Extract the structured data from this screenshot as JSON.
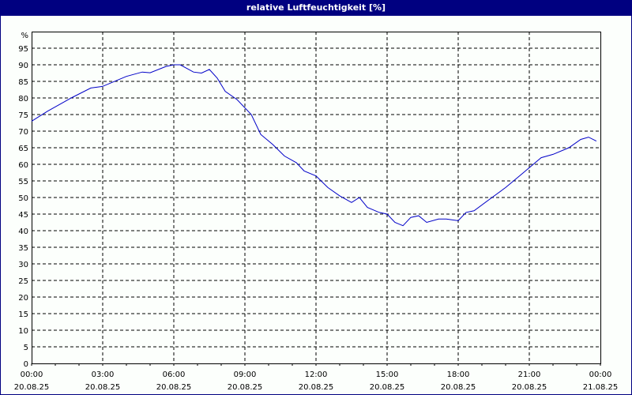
{
  "window": {
    "title": "relative Luftfeuchtigkeit [%]"
  },
  "colors": {
    "titlebar": "#000080",
    "line": "#0000c8",
    "grid": "#000000",
    "background": "#fcfffc"
  },
  "chart_data": {
    "type": "line",
    "title": "relative Luftfeuchtigkeit [%]",
    "xlabel": "",
    "ylabel": "%",
    "ylim": [
      0,
      100
    ],
    "grid": true,
    "legend": null,
    "y_ticks": [
      "0",
      "5",
      "10",
      "15",
      "20",
      "25",
      "30",
      "35",
      "40",
      "45",
      "50",
      "55",
      "60",
      "65",
      "70",
      "75",
      "80",
      "85",
      "90",
      "95"
    ],
    "y_unit_label": "%",
    "x_ticks": [
      {
        "time": "00:00",
        "date": "20.08.25"
      },
      {
        "time": "03:00",
        "date": "20.08.25"
      },
      {
        "time": "06:00",
        "date": "20.08.25"
      },
      {
        "time": "09:00",
        "date": "20.08.25"
      },
      {
        "time": "12:00",
        "date": "20.08.25"
      },
      {
        "time": "15:00",
        "date": "20.08.25"
      },
      {
        "time": "18:00",
        "date": "20.08.25"
      },
      {
        "time": "21:00",
        "date": "20.08.25"
      },
      {
        "time": "00:00",
        "date": "21.08.25"
      }
    ],
    "series": [
      {
        "name": "relative Luftfeuchtigkeit",
        "x_hours": [
          0,
          0.67,
          1.67,
          2.5,
          3.0,
          4.0,
          4.67,
          5.0,
          5.67,
          6.0,
          6.27,
          6.83,
          7.17,
          7.5,
          7.83,
          8.17,
          8.67,
          9.27,
          9.67,
          10.17,
          10.67,
          11.17,
          11.5,
          12.0,
          12.5,
          13.0,
          13.5,
          13.83,
          14.17,
          14.67,
          15.0,
          15.33,
          15.67,
          16.0,
          16.33,
          16.67,
          17.17,
          17.5,
          18.0,
          18.33,
          18.67,
          19.33,
          20.0,
          20.67,
          21.0,
          21.5,
          22.0,
          22.67,
          23.17,
          23.5,
          23.83
        ],
        "values": [
          73,
          76,
          80,
          83,
          83.5,
          86.5,
          87.8,
          87.6,
          89.5,
          90,
          90,
          87.8,
          87.5,
          88.6,
          86,
          82,
          79.5,
          75,
          69,
          66,
          62.5,
          60.5,
          58,
          56.5,
          53,
          50.5,
          48.5,
          50,
          47,
          45.5,
          45,
          42.5,
          41.5,
          44,
          44.5,
          42.5,
          43.5,
          43.5,
          43,
          45.5,
          46,
          49.5,
          53,
          57,
          59,
          62,
          63,
          65,
          67.5,
          68.2,
          67
        ]
      }
    ]
  }
}
